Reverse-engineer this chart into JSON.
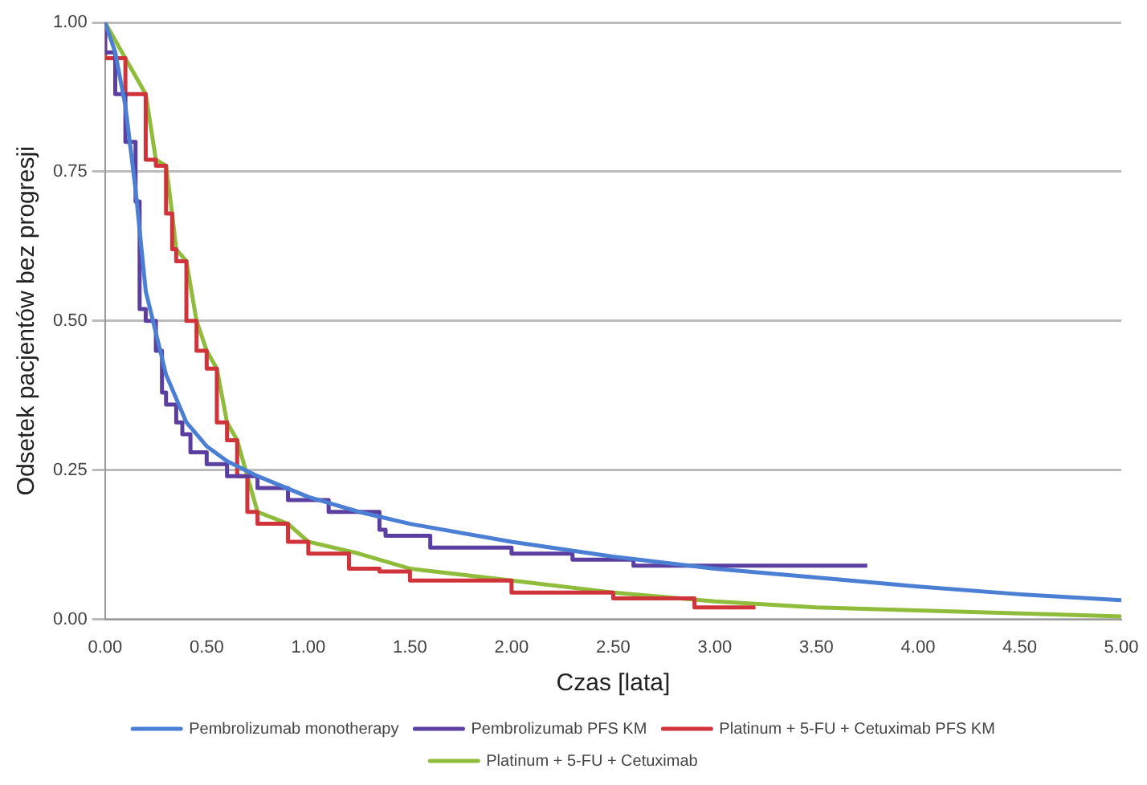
{
  "chart_data": {
    "type": "line",
    "xlabel": "Czas [lata]",
    "ylabel": "Odsetek pacjentów bez progresji",
    "xlim": [
      0,
      5
    ],
    "ylim": [
      0,
      1
    ],
    "xticks": [
      {
        "value": 0,
        "label": "0.00"
      },
      {
        "value": 0.5,
        "label": "0.50"
      },
      {
        "value": 1,
        "label": "1.00"
      },
      {
        "value": 1.5,
        "label": "1.50"
      },
      {
        "value": 2,
        "label": "2.00"
      },
      {
        "value": 2.5,
        "label": "2.50"
      },
      {
        "value": 3,
        "label": "3.00"
      },
      {
        "value": 3.5,
        "label": "3.50"
      },
      {
        "value": 4,
        "label": "4.00"
      },
      {
        "value": 4.5,
        "label": "4.50"
      },
      {
        "value": 5,
        "label": "5.00"
      }
    ],
    "yticks": [
      {
        "value": 0,
        "label": "0.00"
      },
      {
        "value": 0.25,
        "label": "0.25"
      },
      {
        "value": 0.5,
        "label": "0.50"
      },
      {
        "value": 0.75,
        "label": "0.75"
      },
      {
        "value": 1,
        "label": "1.00"
      }
    ],
    "grid": "y",
    "legend": "bottom",
    "marker": "none",
    "series": [
      {
        "name": "Pembrolizumab monotherapy",
        "color": "#4a7fd4",
        "x": [
          0,
          0.05,
          0.1,
          0.15,
          0.2,
          0.3,
          0.4,
          0.5,
          0.6,
          0.75,
          1,
          1.25,
          1.5,
          2,
          2.5,
          3,
          3.5,
          4,
          4.5,
          5
        ],
        "values": [
          1,
          0.95,
          0.86,
          0.72,
          0.55,
          0.41,
          0.33,
          0.29,
          0.265,
          0.24,
          0.205,
          0.18,
          0.16,
          0.13,
          0.105,
          0.085,
          0.07,
          0.055,
          0.042,
          0.032
        ]
      },
      {
        "name": "Pembrolizumab PFS KM",
        "type": "step",
        "color": "#5b3fa0",
        "x": [
          0,
          0.05,
          0.1,
          0.15,
          0.17,
          0.2,
          0.25,
          0.28,
          0.3,
          0.35,
          0.38,
          0.42,
          0.5,
          0.6,
          0.75,
          0.9,
          1.1,
          1.35,
          1.38,
          1.6,
          2,
          2.3,
          2.6,
          3,
          3.75
        ],
        "values": [
          1,
          0.95,
          0.88,
          0.8,
          0.7,
          0.52,
          0.5,
          0.45,
          0.38,
          0.36,
          0.33,
          0.31,
          0.28,
          0.26,
          0.24,
          0.22,
          0.2,
          0.18,
          0.15,
          0.14,
          0.12,
          0.11,
          0.1,
          0.09,
          0.09
        ]
      },
      {
        "name": "Platinum + 5-FU + Cetuximab PFS KM",
        "type": "step",
        "color": "#d0333a",
        "x": [
          0,
          0.1,
          0.2,
          0.25,
          0.3,
          0.33,
          0.35,
          0.4,
          0.45,
          0.5,
          0.55,
          0.6,
          0.65,
          0.7,
          0.75,
          0.9,
          1,
          1.2,
          1.35,
          1.5,
          2,
          2.5,
          2.9,
          2.95,
          3.2
        ],
        "values": [
          1,
          0.94,
          0.88,
          0.77,
          0.76,
          0.68,
          0.62,
          0.6,
          0.5,
          0.45,
          0.42,
          0.33,
          0.3,
          0.24,
          0.18,
          0.16,
          0.13,
          0.11,
          0.085,
          0.08,
          0.065,
          0.045,
          0.035,
          0.02,
          0.02
        ]
      },
      {
        "name": "Platinum + 5-FU + Cetuximab",
        "color": "#8fbc3a",
        "x": [
          0,
          0.1,
          0.2,
          0.25,
          0.3,
          0.33,
          0.35,
          0.4,
          0.45,
          0.5,
          0.55,
          0.6,
          0.65,
          0.7,
          0.75,
          0.9,
          1,
          1.25,
          1.5,
          2,
          2.5,
          3,
          3.5,
          4,
          4.5,
          5
        ],
        "values": [
          1,
          0.94,
          0.88,
          0.77,
          0.76,
          0.68,
          0.62,
          0.6,
          0.5,
          0.45,
          0.42,
          0.33,
          0.3,
          0.24,
          0.18,
          0.16,
          0.13,
          0.11,
          0.085,
          0.065,
          0.045,
          0.03,
          0.02,
          0.015,
          0.01,
          0.005
        ]
      }
    ]
  }
}
